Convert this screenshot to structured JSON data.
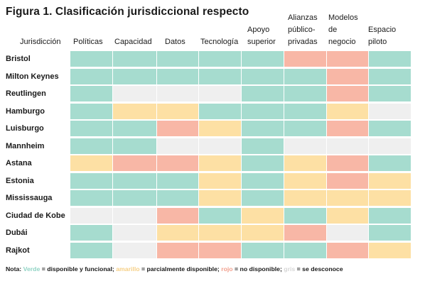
{
  "title": "Figura 1. Clasificación jurisdiccional respecto",
  "columns": {
    "jurisdiccion": "Jurisdicción",
    "politicas": "Políticas",
    "capacidad": "Capacidad",
    "datos": "Datos",
    "tecnologia": "Tecnología",
    "apoyo": [
      "Apoyo",
      "superior"
    ],
    "alianzas": [
      "Alianzas",
      "público-",
      "privadas"
    ],
    "modelos": [
      "Modelos",
      "de",
      "negocio"
    ],
    "espacio": [
      "Espacio",
      "piloto"
    ]
  },
  "colors": {
    "G": "#a6dccf",
    "Y": "#fde0a4",
    "R": "#f8b7a6",
    "N": "#efefef"
  },
  "rows": [
    {
      "name": "Bristol",
      "status": [
        "G",
        "G",
        "G",
        "G",
        "G",
        "R",
        "R",
        "G"
      ]
    },
    {
      "name": "Milton Keynes",
      "status": [
        "G",
        "G",
        "G",
        "G",
        "G",
        "G",
        "R",
        "G"
      ]
    },
    {
      "name": "Reutlingen",
      "status": [
        "G",
        "N",
        "N",
        "N",
        "G",
        "G",
        "R",
        "G"
      ]
    },
    {
      "name": "Hamburgo",
      "status": [
        "G",
        "Y",
        "Y",
        "G",
        "G",
        "G",
        "Y",
        "N"
      ]
    },
    {
      "name": "Luisburgo",
      "status": [
        "G",
        "G",
        "R",
        "Y",
        "G",
        "G",
        "R",
        "G"
      ]
    },
    {
      "name": "Mannheim",
      "status": [
        "G",
        "G",
        "N",
        "N",
        "G",
        "N",
        "N",
        "N"
      ]
    },
    {
      "name": "Astana",
      "status": [
        "Y",
        "R",
        "R",
        "Y",
        "G",
        "Y",
        "R",
        "G"
      ]
    },
    {
      "name": "Estonia",
      "status": [
        "G",
        "G",
        "G",
        "Y",
        "G",
        "Y",
        "R",
        "Y"
      ]
    },
    {
      "name": "Mississauga",
      "status": [
        "G",
        "G",
        "G",
        "Y",
        "G",
        "Y",
        "Y",
        "Y"
      ]
    },
    {
      "name": "Ciudad de Kobe",
      "status": [
        "N",
        "N",
        "R",
        "G",
        "Y",
        "G",
        "Y",
        "G"
      ]
    },
    {
      "name": "Dubái",
      "status": [
        "G",
        "N",
        "Y",
        "Y",
        "Y",
        "R",
        "N",
        "G"
      ]
    },
    {
      "name": "Rajkot",
      "status": [
        "G",
        "N",
        "R",
        "R",
        "G",
        "G",
        "R",
        "Y"
      ]
    }
  ],
  "note": {
    "prefix": "Nota: ",
    "verde": "Verde",
    "verde_desc": " = disponible y funcional; ",
    "amarillo": "amarillo",
    "amarillo_desc": " = parcialmente disponible; ",
    "rojo": "rojo",
    "rojo_desc": " = no disponible; ",
    "gris": "gris",
    "gris_desc": " = se desconoce"
  }
}
